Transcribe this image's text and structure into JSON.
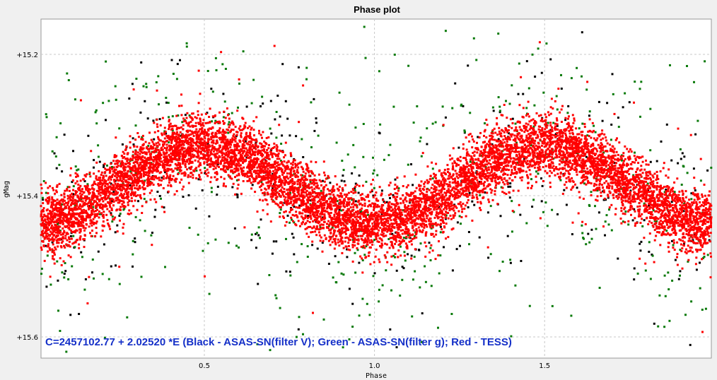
{
  "chart_data": {
    "type": "scatter",
    "title": "Phase plot",
    "xlabel": "Phase",
    "ylabel": "gMag",
    "xlim": [
      0.02,
      1.99
    ],
    "ylim": [
      15.15,
      15.63
    ],
    "y_inverted": true,
    "grid": true,
    "x_ticks": [
      {
        "value": 0.5,
        "label": "0.5"
      },
      {
        "value": 1.0,
        "label": "1.0"
      },
      {
        "value": 1.5,
        "label": "1.5"
      }
    ],
    "y_ticks": [
      {
        "value": 15.2,
        "label": "+15.2"
      },
      {
        "value": 15.4,
        "label": "+15.4"
      },
      {
        "value": 15.6,
        "label": "+15.6"
      }
    ],
    "annotation": "C=2457102.77 + 2.02520 *E (Black - ASAS-SN(filter V); Green - ASAS-SN(filter g); Red - TESS)",
    "model": {
      "mean": 15.385,
      "amplitude": 0.055,
      "max_phase": 0.5
    },
    "series": [
      {
        "color": "#000000",
        "scatter": 0.07,
        "count": 460
      },
      {
        "color": "#0a7a0a",
        "scatter": 0.1,
        "count": 620
      },
      {
        "color": "#ff0000",
        "scatter": 0.022,
        "count": 9000,
        "outliers": 90
      }
    ]
  }
}
